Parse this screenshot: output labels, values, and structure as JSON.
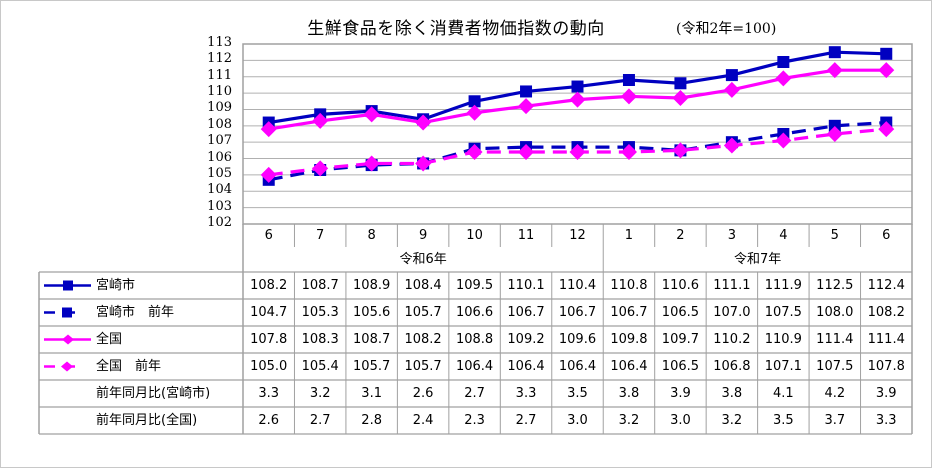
{
  "header": {
    "title": "生鮮食品を除く消費者物価指数の動向",
    "base_note": "(令和2年=100)"
  },
  "axis": {
    "y_ticks": [
      "113",
      "112",
      "111",
      "110",
      "109",
      "108",
      "107",
      "106",
      "105",
      "104",
      "103",
      "102"
    ],
    "months": [
      "6",
      "7",
      "8",
      "9",
      "10",
      "11",
      "12",
      "1",
      "2",
      "3",
      "4",
      "5",
      "6"
    ],
    "years": [
      {
        "label": "令和6年",
        "span": 7
      },
      {
        "label": "令和7年",
        "span": 6
      }
    ]
  },
  "table": {
    "rows": [
      {
        "label": "宮崎市",
        "values": [
          "108.2",
          "108.7",
          "108.9",
          "108.4",
          "109.5",
          "110.1",
          "110.4",
          "110.8",
          "110.6",
          "111.1",
          "111.9",
          "112.5",
          "112.4"
        ]
      },
      {
        "label": "宮崎市　前年",
        "values": [
          "104.7",
          "105.3",
          "105.6",
          "105.7",
          "106.6",
          "106.7",
          "106.7",
          "106.7",
          "106.5",
          "107.0",
          "107.5",
          "108.0",
          "108.2"
        ]
      },
      {
        "label": "全国",
        "values": [
          "107.8",
          "108.3",
          "108.7",
          "108.2",
          "108.8",
          "109.2",
          "109.6",
          "109.8",
          "109.7",
          "110.2",
          "110.9",
          "111.4",
          "111.4"
        ]
      },
      {
        "label": "全国　前年",
        "values": [
          "105.0",
          "105.4",
          "105.7",
          "105.7",
          "106.4",
          "106.4",
          "106.4",
          "106.4",
          "106.5",
          "106.8",
          "107.1",
          "107.5",
          "107.8"
        ]
      },
      {
        "label": "前年同月比(宮崎市)",
        "values": [
          "3.3",
          "3.2",
          "3.1",
          "2.6",
          "2.7",
          "3.3",
          "3.5",
          "3.8",
          "3.9",
          "3.8",
          "4.1",
          "4.2",
          "3.9"
        ]
      },
      {
        "label": "前年同月比(全国)",
        "values": [
          "2.6",
          "2.7",
          "2.8",
          "2.4",
          "2.3",
          "2.7",
          "3.0",
          "3.2",
          "3.0",
          "3.2",
          "3.5",
          "3.7",
          "3.3"
        ]
      }
    ]
  },
  "colors": {
    "miyazaki": "#0000c0",
    "national": "#ff00ff",
    "grid": "#a0a0a0"
  },
  "chart_data": {
    "type": "line",
    "title": "生鮮食品を除く消費者物価指数の動向",
    "subtitle": "(令和2年=100)",
    "categories": [
      "R6/6",
      "R6/7",
      "R6/8",
      "R6/9",
      "R6/10",
      "R6/11",
      "R6/12",
      "R7/1",
      "R7/2",
      "R7/3",
      "R7/4",
      "R7/5",
      "R7/6"
    ],
    "xlabel": "",
    "ylabel": "",
    "ylim": [
      102,
      113
    ],
    "grid": true,
    "legend_position": "table-left",
    "series": [
      {
        "name": "宮崎市",
        "style": "solid",
        "marker": "square",
        "color": "#0000c0",
        "values": [
          108.2,
          108.7,
          108.9,
          108.4,
          109.5,
          110.1,
          110.4,
          110.8,
          110.6,
          111.1,
          111.9,
          112.5,
          112.4
        ]
      },
      {
        "name": "宮崎市　前年",
        "style": "dashed",
        "marker": "square",
        "color": "#0000c0",
        "values": [
          104.7,
          105.3,
          105.6,
          105.7,
          106.6,
          106.7,
          106.7,
          106.7,
          106.5,
          107.0,
          107.5,
          108.0,
          108.2
        ]
      },
      {
        "name": "全国",
        "style": "solid",
        "marker": "diamond",
        "color": "#ff00ff",
        "values": [
          107.8,
          108.3,
          108.7,
          108.2,
          108.8,
          109.2,
          109.6,
          109.8,
          109.7,
          110.2,
          110.9,
          111.4,
          111.4
        ]
      },
      {
        "name": "全国　前年",
        "style": "dashed",
        "marker": "diamond",
        "color": "#ff00ff",
        "values": [
          105.0,
          105.4,
          105.7,
          105.7,
          106.4,
          106.4,
          106.4,
          106.4,
          106.5,
          106.8,
          107.1,
          107.5,
          107.8
        ]
      }
    ],
    "table_rows": [
      {
        "name": "前年同月比(宮崎市)",
        "values": [
          3.3,
          3.2,
          3.1,
          2.6,
          2.7,
          3.3,
          3.5,
          3.8,
          3.9,
          3.8,
          4.1,
          4.2,
          3.9
        ]
      },
      {
        "name": "前年同月比(全国)",
        "values": [
          2.6,
          2.7,
          2.8,
          2.4,
          2.3,
          2.7,
          3.0,
          3.2,
          3.0,
          3.2,
          3.5,
          3.7,
          3.3
        ]
      }
    ]
  }
}
